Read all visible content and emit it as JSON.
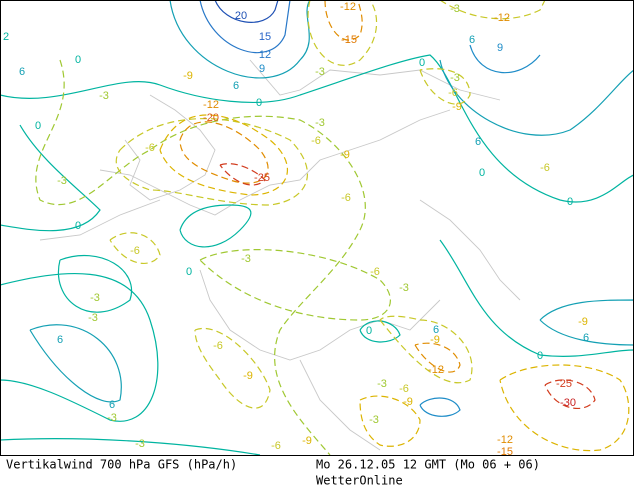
{
  "map": {
    "contour_labels": [
      2,
      20,
      15,
      12,
      9,
      6,
      0,
      6,
      0,
      -3,
      -9,
      -12,
      -20,
      -25,
      -6,
      -3,
      0,
      -3,
      -6,
      -9,
      -6,
      -3,
      -12,
      -15,
      -3,
      -12,
      9,
      6,
      0,
      -3,
      -6,
      -9,
      6,
      0,
      -6,
      0,
      0,
      -6,
      0,
      -3,
      -6,
      -3,
      0,
      -3,
      -3,
      6,
      -6,
      -9,
      6,
      -9,
      -12,
      0,
      -9,
      6,
      -3,
      -6,
      -9,
      6,
      -3,
      -3,
      -25,
      -30,
      -3,
      -9,
      -6,
      -12,
      -15
    ]
  },
  "footer": {
    "title": "Vertikalwind 700 hPa GFS (hPa/h)",
    "time": "Mo 26.12.05 12 GMT (Mo 06 + 06)",
    "source": "WetterOnline"
  }
}
